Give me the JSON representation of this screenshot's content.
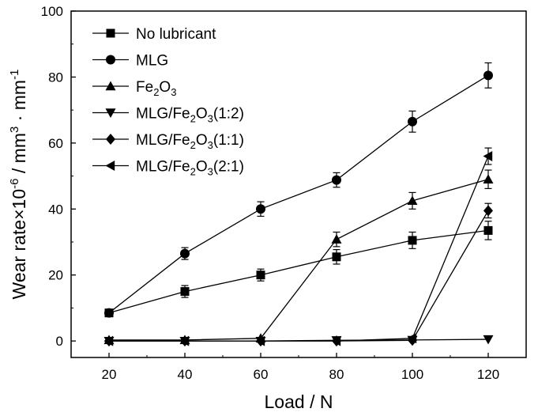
{
  "chart_data": {
    "type": "line",
    "title": "",
    "xlabel": "Load / N",
    "ylabel_parts": {
      "main": "Wear rate×10",
      "exp1": "-6",
      "mid": " / mm",
      "exp2": "3",
      "tail": " · mm",
      "exp3": "-1"
    },
    "x": [
      20,
      40,
      60,
      80,
      100,
      120
    ],
    "xlim": [
      10,
      130
    ],
    "ylim": [
      -5,
      100
    ],
    "xticks": [
      "20",
      "40",
      "60",
      "80",
      "100",
      "120"
    ],
    "yticks": [
      "0",
      "20",
      "40",
      "60",
      "80",
      "100"
    ],
    "grid": false,
    "legend_position": "top-left",
    "series": [
      {
        "name": "No lubricant",
        "legend": {
          "base": "No lubricant",
          "subs": []
        },
        "marker": "square",
        "values": [
          8.5,
          15.0,
          20.0,
          25.5,
          30.5,
          33.5
        ],
        "errors": [
          1.0,
          1.8,
          1.8,
          2.2,
          2.5,
          2.8
        ]
      },
      {
        "name": "MLG",
        "legend": {
          "base": "MLG",
          "subs": []
        },
        "marker": "circle",
        "values": [
          8.5,
          26.5,
          40.0,
          48.8,
          66.5,
          80.5
        ],
        "errors": [
          1.0,
          1.8,
          2.2,
          2.2,
          3.2,
          3.8
        ]
      },
      {
        "name": "Fe2O3",
        "legend": {
          "base": "Fe",
          "subs": [
            [
              "2",
              "O"
            ],
            [
              "3",
              ""
            ]
          ]
        },
        "marker": "triangle-up",
        "values": [
          0.3,
          0.3,
          0.8,
          30.8,
          42.5,
          49.0
        ],
        "errors": [
          0.2,
          0.2,
          0.3,
          2.2,
          2.5,
          2.8
        ]
      },
      {
        "name": "MLG/Fe2O3(1:2)",
        "legend": {
          "base": "MLG/Fe",
          "subs": [
            [
              "2",
              "O"
            ],
            [
              "3",
              "(1:2)"
            ]
          ]
        },
        "marker": "triangle-down",
        "values": [
          0.0,
          0.0,
          0.0,
          0.2,
          0.3,
          0.5
        ],
        "errors": [
          0.2,
          0.2,
          0.2,
          0.2,
          0.2,
          0.2
        ]
      },
      {
        "name": "MLG/Fe2O3(1:1)",
        "legend": {
          "base": "MLG/Fe",
          "subs": [
            [
              "2",
              "O"
            ],
            [
              "3",
              "(1:1)"
            ]
          ]
        },
        "marker": "diamond",
        "values": [
          0.0,
          0.0,
          0.0,
          0.0,
          0.2,
          39.5
        ],
        "errors": [
          0.2,
          0.2,
          0.2,
          0.2,
          0.2,
          2.2
        ]
      },
      {
        "name": "MLG/Fe2O3(2:1)",
        "legend": {
          "base": "MLG/Fe",
          "subs": [
            [
              "2",
              "O"
            ],
            [
              "3",
              "(2:1)"
            ]
          ]
        },
        "marker": "triangle-left",
        "values": [
          0.0,
          0.0,
          0.0,
          0.0,
          0.8,
          56.0
        ],
        "errors": [
          0.2,
          0.2,
          0.2,
          0.2,
          0.3,
          2.5
        ]
      }
    ]
  }
}
